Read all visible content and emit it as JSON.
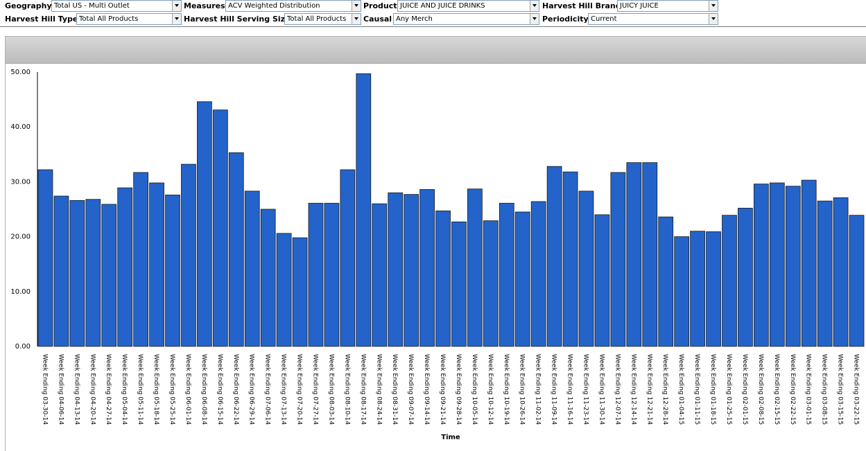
{
  "filters": {
    "geography": {
      "label": "Geography",
      "value": "Total US - Multi Outlet"
    },
    "measures": {
      "label": "Measures",
      "value": "ACV Weighted Distribution"
    },
    "product": {
      "label": "Product",
      "value": "JUICE AND JUICE DRINKS"
    },
    "brand": {
      "label": "Harvest Hill Brand",
      "value": "JUICY JUICE"
    },
    "type": {
      "label": "Harvest Hill Type",
      "value": "Total All Products"
    },
    "serving_size": {
      "label": "Harvest Hill Serving Size",
      "value": "Total All Products"
    },
    "causal": {
      "label": "Causal",
      "value": "Any Merch"
    },
    "periodicity": {
      "label": "Periodicity",
      "value": "Current"
    }
  },
  "colors": {
    "bar": "#2463c9",
    "bar_border": "#1a1a1a"
  },
  "chart_data": {
    "type": "bar",
    "title": "",
    "xlabel": "Time",
    "ylabel": "",
    "ylim": [
      0,
      50
    ],
    "yticks": [
      "0.00",
      "10.00",
      "20.00",
      "30.00",
      "40.00",
      "50.00"
    ],
    "grid": false,
    "categories": [
      "Week Ending 03-30-14",
      "Week Ending 04-06-14",
      "Week Ending 04-13-14",
      "Week Ending 04-20-14",
      "Week Ending 04-27-14",
      "Week Ending 05-04-14",
      "Week Ending 05-11-14",
      "Week Ending 05-18-14",
      "Week Ending 05-25-14",
      "Week Ending 06-01-14",
      "Week Ending 06-08-14",
      "Week Ending 06-15-14",
      "Week Ending 06-22-14",
      "Week Ending 06-29-14",
      "Week Ending 07-06-14",
      "Week Ending 07-13-14",
      "Week Ending 07-20-14",
      "Week Ending 07-27-14",
      "Week Ending 08-03-14",
      "Week Ending 08-10-14",
      "Week Ending 08-17-14",
      "Week Ending 08-24-14",
      "Week Ending 08-31-14",
      "Week Ending 09-07-14",
      "Week Ending 09-14-14",
      "Week Ending 09-21-14",
      "Week Ending 09-28-14",
      "Week Ending 10-05-14",
      "Week Ending 10-12-14",
      "Week Ending 10-19-14",
      "Week Ending 10-26-14",
      "Week Ending 11-02-14",
      "Week Ending 11-09-14",
      "Week Ending 11-16-14",
      "Week Ending 11-23-14",
      "Week Ending 11-30-14",
      "Week Ending 12-07-14",
      "Week Ending 12-14-14",
      "Week Ending 12-21-14",
      "Week Ending 12-28-14",
      "Week Ending 01-04-15",
      "Week Ending 01-11-15",
      "Week Ending 01-18-15",
      "Week Ending 01-25-15",
      "Week Ending 02-01-15",
      "Week Ending 02-08-15",
      "Week Ending 02-15-15",
      "Week Ending 02-22-15",
      "Week Ending 03-01-15",
      "Week Ending 03-08-15",
      "Week Ending 03-15-15",
      "Week Ending 03-22-15"
    ],
    "values": [
      32.2,
      27.4,
      26.6,
      26.8,
      25.9,
      28.9,
      31.7,
      29.8,
      27.6,
      33.2,
      44.6,
      43.1,
      35.3,
      28.3,
      25.0,
      20.6,
      19.8,
      26.1,
      26.1,
      32.2,
      49.7,
      26.0,
      28.0,
      27.7,
      28.6,
      24.7,
      22.7,
      28.7,
      22.9,
      26.1,
      24.5,
      26.4,
      32.8,
      31.8,
      28.3,
      24.0,
      31.7,
      33.5,
      33.5,
      23.6,
      20.0,
      21.0,
      20.9,
      23.9,
      25.2,
      29.6,
      29.8,
      29.2,
      30.3,
      26.5,
      27.1,
      23.9
    ]
  }
}
